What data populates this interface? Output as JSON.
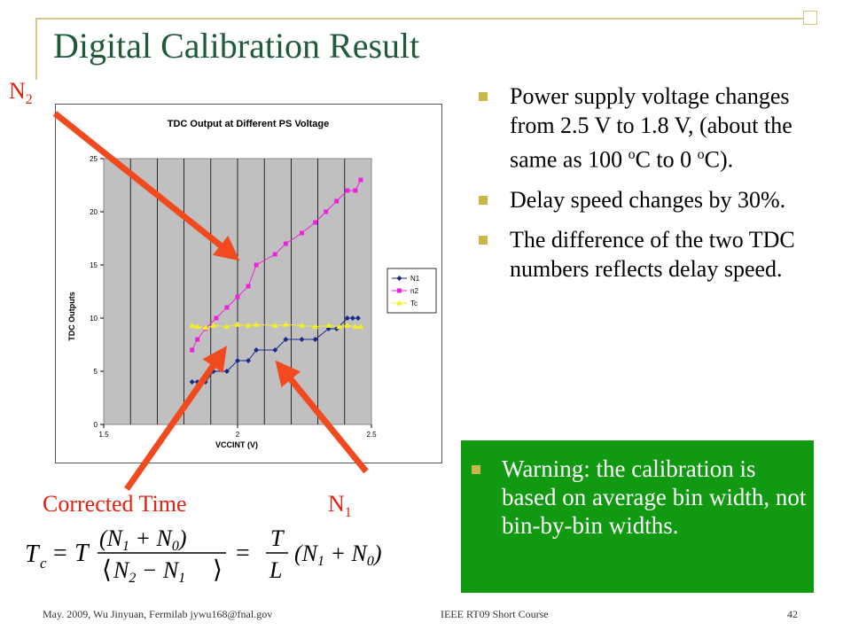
{
  "slide": {
    "title": "Digital Calibration Result",
    "bullets": [
      {
        "text": "Power supply voltage changes from 2.5 V to 1.8 V, (about the same as 100 ",
        "sup1": "o",
        "mid": "C to 0 ",
        "sup2": "o",
        "end": "C)."
      },
      {
        "text": "Delay speed changes by 30%."
      },
      {
        "text": "The difference of the two TDC numbers reflects delay speed."
      }
    ],
    "warning": "Warning: the calibration is based on average bin width, not bin-by-bin widths.",
    "labels": {
      "n2_base": "N",
      "n2_sub": "2",
      "n1_base": "N",
      "n1_sub": "1",
      "corrected": "Corrected Time"
    },
    "formula": {
      "tc": "T",
      "tc_sub": "c",
      "eq": "=",
      "T": "T",
      "L": "L",
      "num": "(N",
      "num_sub1": "1",
      "num_plus": " + N",
      "num_sub0": "0",
      "num_close": ")",
      "den": "N",
      "den_sub2": "2",
      "den_minus": " − N",
      "den_sub1": "1",
      "right": "(N",
      "right_sub1": "1",
      "right_plus": " + N",
      "right_sub0": "0",
      "right_close": ")"
    },
    "footer": {
      "left": "May. 2009, Wu Jinyuan, Fermilab jywu168@fnal.gov",
      "mid": "IEEE RT09 Short Course",
      "page": "42"
    },
    "colors": {
      "title": "#1f5a3a",
      "bullet_mark": "#c8b64a",
      "warning_bg": "#119911",
      "arrow": "#f04a1e",
      "label": "#e8200f"
    }
  },
  "chart_data": {
    "type": "line",
    "title": "TDC Output at Different PS Voltage",
    "xlabel": "VCCINT (V)",
    "ylabel": "TDC Outputs",
    "xlim": [
      1.5,
      2.5
    ],
    "ylim": [
      0,
      25
    ],
    "xticks": [
      "1.5",
      "2",
      "2.5"
    ],
    "yticks": [
      "0",
      "5",
      "10",
      "15",
      "20",
      "25"
    ],
    "grid": true,
    "legend_position": "right",
    "series": [
      {
        "name": "N1",
        "color": "#1a2a8a",
        "marker": "diamond",
        "x": [
          1.83,
          1.85,
          1.88,
          1.91,
          1.96,
          2.0,
          2.04,
          2.07,
          2.14,
          2.18,
          2.24,
          2.29,
          2.34,
          2.37,
          2.41,
          2.43,
          2.45
        ],
        "y": [
          4,
          4,
          4,
          5,
          5,
          6,
          6,
          7,
          7,
          8,
          8,
          8,
          9,
          9,
          10,
          10,
          10
        ]
      },
      {
        "name": "n2",
        "color": "#ee22dd",
        "marker": "square",
        "x": [
          1.83,
          1.85,
          1.88,
          1.92,
          1.96,
          2.0,
          2.04,
          2.07,
          2.14,
          2.18,
          2.24,
          2.29,
          2.33,
          2.37,
          2.41,
          2.44,
          2.46
        ],
        "y": [
          7,
          8,
          9,
          10,
          11,
          12,
          13,
          15,
          16,
          17,
          18,
          19,
          20,
          21,
          22,
          22,
          23
        ]
      },
      {
        "name": "Tc",
        "color": "#f2ee22",
        "marker": "triangle",
        "x": [
          1.83,
          1.85,
          1.88,
          1.91,
          1.96,
          2.0,
          2.04,
          2.07,
          2.14,
          2.18,
          2.24,
          2.29,
          2.34,
          2.38,
          2.41,
          2.44,
          2.46
        ],
        "y": [
          9.3,
          9.2,
          9.1,
          9.3,
          9.2,
          9.4,
          9.3,
          9.4,
          9.3,
          9.4,
          9.3,
          9.2,
          9.3,
          9.2,
          9.3,
          9.2,
          9.2
        ]
      }
    ]
  }
}
